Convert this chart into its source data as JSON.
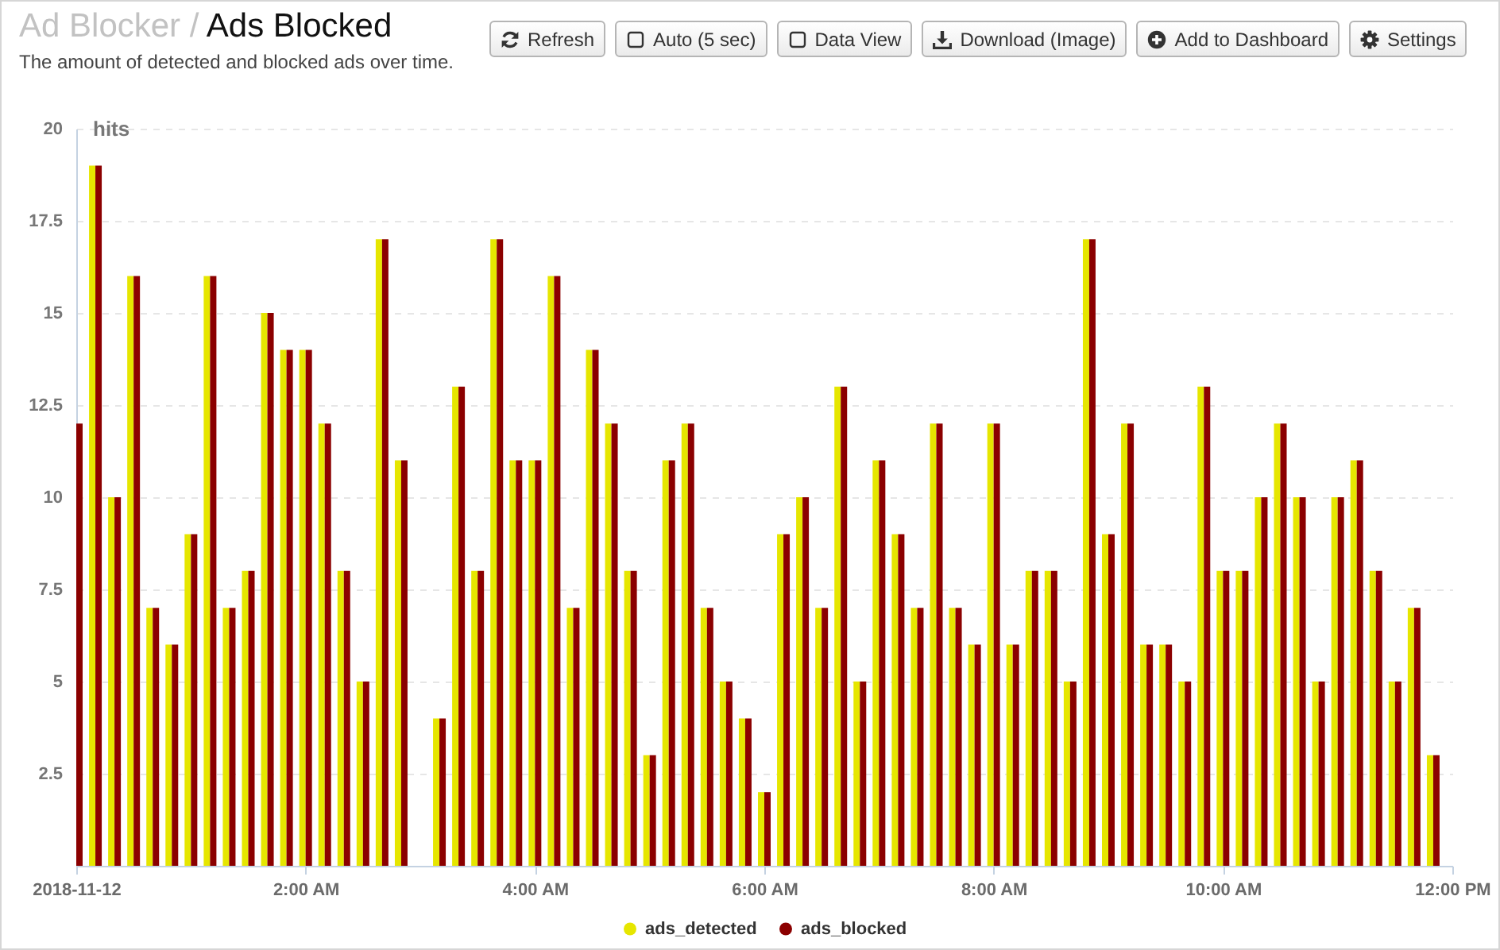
{
  "chart_data": {
    "type": "bar",
    "title": "Ad Blocker / Ads Blocked",
    "subtitle": "The amount of detected and blocked ads over time.",
    "ylabel": "hits",
    "annotations": [
      "Refresh",
      "Auto (5 sec)",
      "Data View",
      "Download (Image)",
      "Add to Dashboard",
      "Settings"
    ],
    "x": [
      "2018-11-12T00:00",
      "2018-11-12T00:10",
      "2018-11-12T00:20",
      "2018-11-12T00:30",
      "2018-11-12T00:40",
      "2018-11-12T00:50",
      "2018-11-12T01:00",
      "2018-11-12T01:10",
      "2018-11-12T01:20",
      "2018-11-12T01:30",
      "2018-11-12T01:40",
      "2018-11-12T01:50",
      "2018-11-12T02:00",
      "2018-11-12T02:10",
      "2018-11-12T02:20",
      "2018-11-12T02:30",
      "2018-11-12T02:40",
      "2018-11-12T02:50",
      "2018-11-12T03:00",
      "2018-11-12T03:10",
      "2018-11-12T03:20",
      "2018-11-12T03:30",
      "2018-11-12T03:40",
      "2018-11-12T03:50",
      "2018-11-12T04:00",
      "2018-11-12T04:10",
      "2018-11-12T04:20",
      "2018-11-12T04:30",
      "2018-11-12T04:40",
      "2018-11-12T04:50",
      "2018-11-12T05:00",
      "2018-11-12T05:10",
      "2018-11-12T05:20",
      "2018-11-12T05:30",
      "2018-11-12T05:40",
      "2018-11-12T05:50",
      "2018-11-12T06:00",
      "2018-11-12T06:10",
      "2018-11-12T06:20",
      "2018-11-12T06:30",
      "2018-11-12T06:40",
      "2018-11-12T06:50",
      "2018-11-12T07:00",
      "2018-11-12T07:10",
      "2018-11-12T07:20",
      "2018-11-12T07:30",
      "2018-11-12T07:40",
      "2018-11-12T07:50",
      "2018-11-12T08:00",
      "2018-11-12T08:10",
      "2018-11-12T08:20",
      "2018-11-12T08:30",
      "2018-11-12T08:40",
      "2018-11-12T08:50",
      "2018-11-12T09:00",
      "2018-11-12T09:10",
      "2018-11-12T09:20",
      "2018-11-12T09:30",
      "2018-11-12T09:40",
      "2018-11-12T09:50",
      "2018-11-12T10:00",
      "2018-11-12T10:10",
      "2018-11-12T10:20",
      "2018-11-12T10:30",
      "2018-11-12T10:40",
      "2018-11-12T10:50",
      "2018-11-12T11:00",
      "2018-11-12T11:10",
      "2018-11-12T11:20",
      "2018-11-12T11:30",
      "2018-11-12T11:40",
      "2018-11-12T11:50"
    ],
    "series": [
      {
        "name": "ads_detected",
        "color": "#e6e600",
        "values": [
          null,
          19,
          10,
          16,
          7,
          6,
          9,
          16,
          7,
          8,
          15,
          14,
          14,
          12,
          8,
          5,
          17,
          11,
          null,
          4,
          13,
          8,
          17,
          11,
          11,
          16,
          7,
          14,
          12,
          8,
          3,
          11,
          12,
          7,
          5,
          4,
          2,
          9,
          10,
          7,
          13,
          5,
          11,
          9,
          7,
          12,
          7,
          6,
          12,
          6,
          8,
          8,
          5,
          17,
          9,
          12,
          6,
          6,
          5,
          13,
          8,
          8,
          10,
          12,
          10,
          5,
          10,
          11,
          8,
          5,
          7,
          3
        ]
      },
      {
        "name": "ads_blocked",
        "color": "#8b0000",
        "values": [
          12,
          19,
          10,
          16,
          7,
          6,
          9,
          16,
          7,
          8,
          15,
          14,
          14,
          12,
          8,
          5,
          17,
          11,
          null,
          4,
          13,
          8,
          17,
          11,
          11,
          16,
          7,
          14,
          12,
          8,
          3,
          11,
          12,
          7,
          5,
          4,
          2,
          9,
          10,
          7,
          13,
          5,
          11,
          9,
          7,
          12,
          7,
          6,
          12,
          6,
          8,
          8,
          5,
          17,
          9,
          12,
          6,
          6,
          5,
          13,
          8,
          8,
          10,
          12,
          10,
          5,
          10,
          11,
          8,
          5,
          7,
          3
        ]
      }
    ],
    "xlim": [
      "2018-11-12T00:00",
      "2018-11-12T12:00"
    ],
    "xticks": [
      {
        "value": "2018-11-12T00:00",
        "label": "2018-11-12"
      },
      {
        "value": "2018-11-12T02:00",
        "label": "2:00 AM"
      },
      {
        "value": "2018-11-12T04:00",
        "label": "4:00 AM"
      },
      {
        "value": "2018-11-12T06:00",
        "label": "6:00 AM"
      },
      {
        "value": "2018-11-12T08:00",
        "label": "8:00 AM"
      },
      {
        "value": "2018-11-12T10:00",
        "label": "10:00 AM"
      },
      {
        "value": "2018-11-12T12:00",
        "label": "12:00 PM"
      }
    ],
    "ylim": [
      0,
      20
    ],
    "yticks": [
      2.5,
      5,
      7.5,
      10,
      12.5,
      15,
      17.5,
      20
    ],
    "grid": "y",
    "legend": "bottom"
  }
}
